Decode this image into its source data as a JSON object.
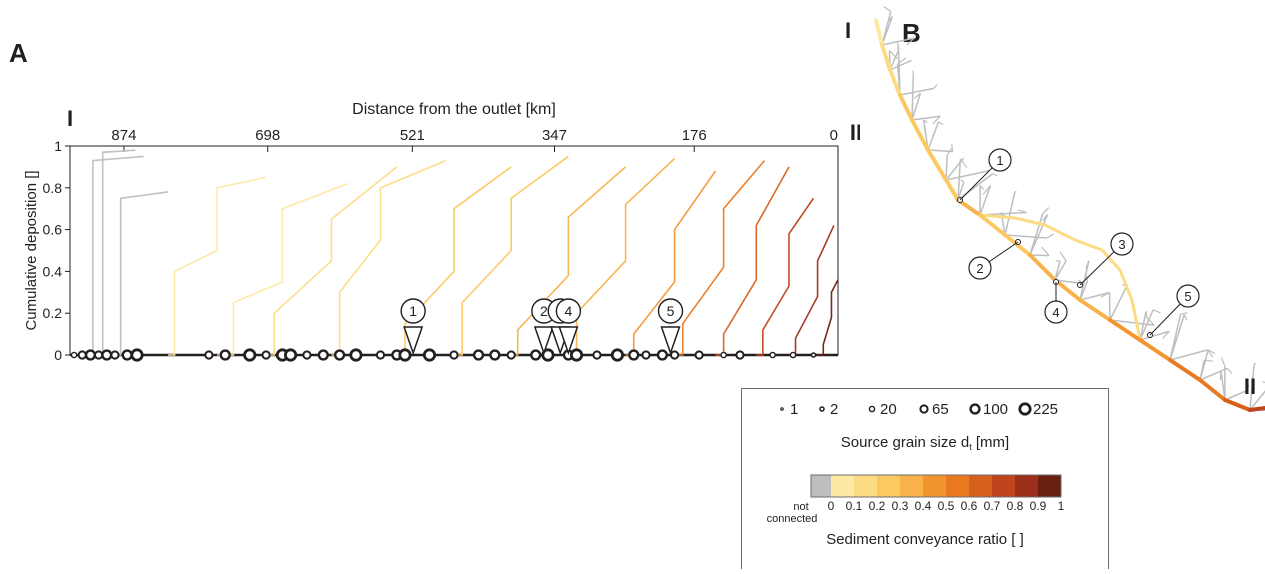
{
  "panels": {
    "a": {
      "label": "A"
    },
    "b": {
      "label": "B"
    }
  },
  "endpoints": {
    "upstream": "I",
    "downstream": "II"
  },
  "chart_data": {
    "type": "line",
    "title": "",
    "x_top_label": "Distance from the outlet [km]",
    "x_top_ticks": [
      "874",
      "698",
      "521",
      "347",
      "176",
      "0"
    ],
    "ylabel": "Cumulative deposition []",
    "y_ticks": [
      "0",
      "0.2",
      "0.4",
      "0.6",
      "0.8",
      "1"
    ],
    "ylim": [
      0,
      1
    ],
    "xlim_km": [
      940,
      0
    ],
    "grid": false,
    "series": [
      {
        "x_km": [
          920,
          912,
          912,
          850
        ],
        "values": [
          0.0,
          0.0,
          0.93,
          0.95
        ],
        "group": "not connected"
      },
      {
        "x_km": [
          905,
          900,
          900,
          860
        ],
        "values": [
          0.0,
          0.0,
          0.97,
          0.98
        ],
        "group": "not connected"
      },
      {
        "x_km": [
          880,
          878,
          878,
          820
        ],
        "values": [
          0.0,
          0.0,
          0.75,
          0.78
        ],
        "group": "not connected"
      },
      {
        "x_km": [
          820,
          812,
          812,
          760,
          760,
          700
        ],
        "values": [
          0.0,
          0.0,
          0.4,
          0.5,
          0.8,
          0.85
        ],
        "group": "0-0.1"
      },
      {
        "x_km": [
          760,
          740,
          740,
          680,
          680,
          600
        ],
        "values": [
          0.0,
          0.0,
          0.25,
          0.35,
          0.7,
          0.82
        ],
        "group": "0-0.1"
      },
      {
        "x_km": [
          700,
          690,
          690,
          620,
          620,
          540
        ],
        "values": [
          0.0,
          0.0,
          0.2,
          0.45,
          0.65,
          0.9
        ],
        "group": "0.1-0.2"
      },
      {
        "x_km": [
          620,
          610,
          610,
          560,
          560,
          480
        ],
        "values": [
          0.0,
          0.0,
          0.3,
          0.55,
          0.8,
          0.93
        ],
        "group": "0.1-0.2"
      },
      {
        "x_km": [
          540,
          530,
          530,
          470,
          470,
          400
        ],
        "values": [
          0.0,
          0.0,
          0.15,
          0.4,
          0.7,
          0.9
        ],
        "group": "0.2-0.3"
      },
      {
        "x_km": [
          470,
          460,
          460,
          400,
          400,
          330
        ],
        "values": [
          0.0,
          0.0,
          0.25,
          0.5,
          0.75,
          0.95
        ],
        "group": "0.2-0.3"
      },
      {
        "x_km": [
          400,
          392,
          392,
          330,
          330,
          260
        ],
        "values": [
          0.0,
          0.0,
          0.12,
          0.38,
          0.66,
          0.9
        ],
        "group": "0.3-0.4"
      },
      {
        "x_km": [
          330,
          320,
          320,
          260,
          260,
          200
        ],
        "values": [
          0.0,
          0.0,
          0.2,
          0.45,
          0.72,
          0.94
        ],
        "group": "0.3-0.4"
      },
      {
        "x_km": [
          260,
          250,
          250,
          200,
          200,
          150
        ],
        "values": [
          0.0,
          0.0,
          0.1,
          0.35,
          0.6,
          0.88
        ],
        "group": "0.4-0.5"
      },
      {
        "x_km": [
          200,
          190,
          190,
          140,
          140,
          90
        ],
        "values": [
          0.0,
          0.0,
          0.15,
          0.42,
          0.7,
          0.93
        ],
        "group": "0.5-0.6"
      },
      {
        "x_km": [
          150,
          140,
          140,
          100,
          100,
          60
        ],
        "values": [
          0.0,
          0.0,
          0.1,
          0.36,
          0.62,
          0.9
        ],
        "group": "0.6-0.7"
      },
      {
        "x_km": [
          100,
          92,
          92,
          60,
          60,
          30
        ],
        "values": [
          0.0,
          0.0,
          0.12,
          0.33,
          0.58,
          0.75
        ],
        "group": "0.7-0.8"
      },
      {
        "x_km": [
          60,
          52,
          52,
          25,
          25,
          5
        ],
        "values": [
          0.0,
          0.0,
          0.08,
          0.28,
          0.45,
          0.62
        ],
        "group": "0.8-0.9"
      },
      {
        "x_km": [
          25,
          18,
          18,
          8,
          8,
          0
        ],
        "values": [
          0.0,
          0.0,
          0.05,
          0.18,
          0.3,
          0.36
        ],
        "group": "0.9-1"
      }
    ],
    "markers": [
      {
        "label": "1",
        "x_km": 520
      },
      {
        "label": "2",
        "x_km": 360
      },
      {
        "label": "3",
        "x_km": 340
      },
      {
        "label": "4",
        "x_km": 330
      },
      {
        "label": "5",
        "x_km": 205
      }
    ],
    "sources": [
      {
        "x_km": 935,
        "grain": 20
      },
      {
        "x_km": 925,
        "grain": 65
      },
      {
        "x_km": 915,
        "grain": 100
      },
      {
        "x_km": 905,
        "grain": 65
      },
      {
        "x_km": 895,
        "grain": 100
      },
      {
        "x_km": 885,
        "grain": 65
      },
      {
        "x_km": 870,
        "grain": 100
      },
      {
        "x_km": 858,
        "grain": 225
      },
      {
        "x_km": 770,
        "grain": 65
      },
      {
        "x_km": 750,
        "grain": 100
      },
      {
        "x_km": 720,
        "grain": 225
      },
      {
        "x_km": 700,
        "grain": 65
      },
      {
        "x_km": 680,
        "grain": 225
      },
      {
        "x_km": 670,
        "grain": 225
      },
      {
        "x_km": 650,
        "grain": 65
      },
      {
        "x_km": 630,
        "grain": 100
      },
      {
        "x_km": 610,
        "grain": 100
      },
      {
        "x_km": 590,
        "grain": 225
      },
      {
        "x_km": 560,
        "grain": 65
      },
      {
        "x_km": 540,
        "grain": 100
      },
      {
        "x_km": 530,
        "grain": 225
      },
      {
        "x_km": 500,
        "grain": 225
      },
      {
        "x_km": 470,
        "grain": 65
      },
      {
        "x_km": 440,
        "grain": 100
      },
      {
        "x_km": 420,
        "grain": 100
      },
      {
        "x_km": 400,
        "grain": 65
      },
      {
        "x_km": 370,
        "grain": 100
      },
      {
        "x_km": 355,
        "grain": 225
      },
      {
        "x_km": 330,
        "grain": 100
      },
      {
        "x_km": 320,
        "grain": 225
      },
      {
        "x_km": 295,
        "grain": 65
      },
      {
        "x_km": 270,
        "grain": 225
      },
      {
        "x_km": 250,
        "grain": 100
      },
      {
        "x_km": 235,
        "grain": 65
      },
      {
        "x_km": 215,
        "grain": 100
      },
      {
        "x_km": 200,
        "grain": 65
      },
      {
        "x_km": 170,
        "grain": 65
      },
      {
        "x_km": 140,
        "grain": 20
      },
      {
        "x_km": 120,
        "grain": 65
      },
      {
        "x_km": 80,
        "grain": 20
      },
      {
        "x_km": 55,
        "grain": 20
      },
      {
        "x_km": 30,
        "grain": 2
      }
    ]
  },
  "colors": {
    "not connected": "#bcbec0",
    "0-0.1": "#fee9a2",
    "0.1-0.2": "#fddb82",
    "0.2-0.3": "#fcc862",
    "0.3-0.4": "#f9b24b",
    "0.4-0.5": "#f3952f",
    "0.5-0.6": "#ea7a22",
    "0.6-0.7": "#d8601d",
    "0.7-0.8": "#c0451c",
    "0.8-0.9": "#9e301b",
    "0.9-1": "#6b1f10",
    "axis": "#231f20",
    "network_branch": "#bcbec0"
  },
  "legend": {
    "grain_items": [
      {
        "label": "1",
        "grain": 1
      },
      {
        "label": "2",
        "grain": 2
      },
      {
        "label": "20",
        "grain": 20
      },
      {
        "label": "65",
        "grain": 65
      },
      {
        "label": "100",
        "grain": 100
      },
      {
        "label": "225",
        "grain": 225
      }
    ],
    "grain_title": "Source grain size d",
    "grain_title_sub": "t",
    "grain_title_unit": " [mm]",
    "colorbar_groups": [
      "not connected",
      "0-0.1",
      "0.1-0.2",
      "0.2-0.3",
      "0.3-0.4",
      "0.4-0.5",
      "0.5-0.6",
      "0.6-0.7",
      "0.7-0.8",
      "0.8-0.9",
      "0.9-1"
    ],
    "colorbar_ticks": [
      "0",
      "0.1",
      "0.2",
      "0.3",
      "0.4",
      "0.5",
      "0.6",
      "0.7",
      "0.8",
      "0.9",
      "1"
    ],
    "not_connected_line1": "not",
    "not_connected_line2": "connected",
    "colorbar_title": "Sediment conveyance ratio [ ]"
  },
  "map": {
    "callouts": [
      "1",
      "2",
      "3",
      "4",
      "5"
    ]
  }
}
